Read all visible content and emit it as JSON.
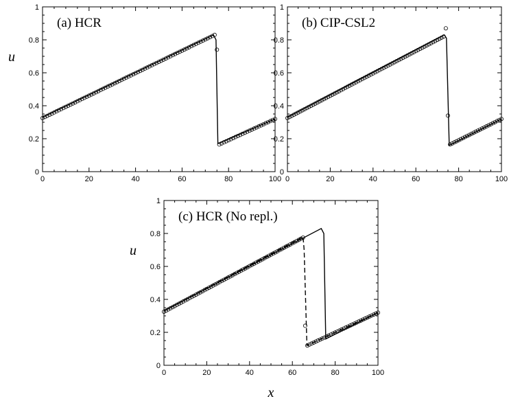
{
  "chart_data": [
    {
      "type": "line",
      "panel_label": "(a)  HCR",
      "xlabel": "",
      "ylabel": "u",
      "xlim": [
        0,
        100
      ],
      "ylim": [
        0,
        1
      ],
      "x_ticks": [
        "0",
        "20",
        "40",
        "60",
        "80",
        "100"
      ],
      "y_ticks": [
        "0",
        "0.2",
        "0.4",
        "0.6",
        "0.8",
        "1"
      ],
      "grid": false,
      "series": [
        {
          "style": "solid",
          "x": [
            0,
            73.5,
            74.6,
            75.4,
            100
          ],
          "y": [
            0.33,
            0.83,
            0.8,
            0.17,
            0.32
          ]
        },
        {
          "style": "markers",
          "x": [
            0,
            74,
            75,
            76,
            100
          ],
          "y": [
            0.325,
            0.83,
            0.74,
            0.165,
            0.32
          ]
        }
      ]
    },
    {
      "type": "line",
      "panel_label": "(b)  CIP-CSL2",
      "xlabel": "",
      "ylabel": "",
      "xlim": [
        0,
        100
      ],
      "ylim": [
        0,
        1
      ],
      "x_ticks": [
        "0",
        "20",
        "40",
        "60",
        "80",
        "100"
      ],
      "y_ticks": [
        "0",
        "0.2",
        "0.4",
        "0.6",
        "0.8",
        "1"
      ],
      "grid": false,
      "series": [
        {
          "style": "solid",
          "x": [
            0,
            73.3,
            74.3,
            75.6,
            100
          ],
          "y": [
            0.33,
            0.83,
            0.81,
            0.16,
            0.32
          ]
        },
        {
          "style": "markers",
          "x": [
            0,
            73,
            74,
            75,
            76,
            100
          ],
          "y": [
            0.325,
            0.82,
            0.87,
            0.34,
            0.165,
            0.32
          ]
        }
      ]
    },
    {
      "type": "line",
      "panel_label": "(c)  HCR (No repl.)",
      "xlabel": "x",
      "ylabel": "u",
      "xlim": [
        0,
        100
      ],
      "ylim": [
        0,
        1
      ],
      "x_ticks": [
        "0",
        "20",
        "40",
        "60",
        "80",
        "100"
      ],
      "y_ticks": [
        "0",
        "0.2",
        "0.4",
        "0.6",
        "0.8",
        "1"
      ],
      "grid": false,
      "series": [
        {
          "style": "solid",
          "x": [
            0,
            73.5,
            74.7,
            75.6,
            100
          ],
          "y": [
            0.33,
            0.83,
            0.8,
            0.16,
            0.32
          ]
        },
        {
          "style": "dashed",
          "x": [
            0,
            65,
            65.5,
            66.8,
            100
          ],
          "y": [
            0.33,
            0.78,
            0.7,
            0.12,
            0.32
          ]
        },
        {
          "style": "markers",
          "x": [
            0,
            65,
            66,
            67,
            100
          ],
          "y": [
            0.325,
            0.775,
            0.24,
            0.12,
            0.32
          ]
        }
      ]
    }
  ]
}
